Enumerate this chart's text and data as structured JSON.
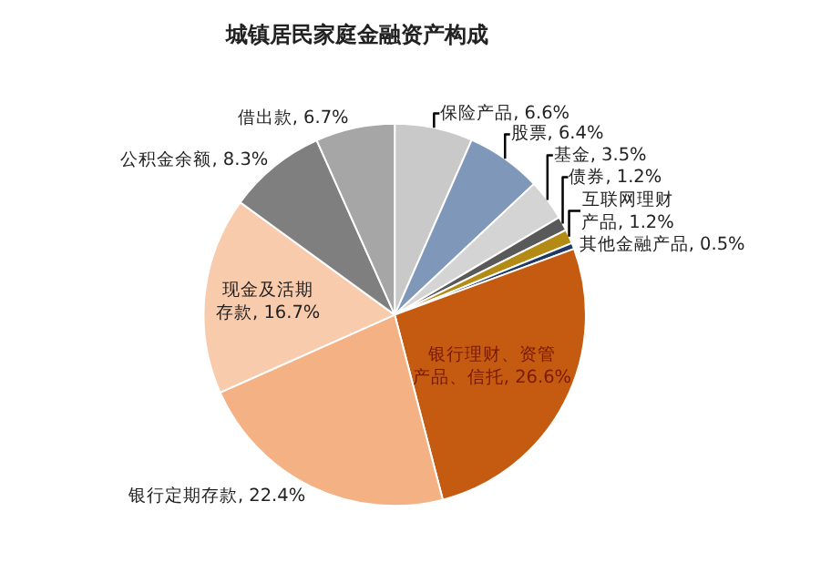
{
  "chart_data": {
    "type": "pie",
    "title": "城镇居民家庭金融资产构成",
    "categories": [
      "保险产品",
      "股票",
      "基金",
      "债券",
      "互联网理财产品",
      "其他金融产品",
      "银行理财、资管产品、信托",
      "银行定期存款",
      "现金及活期存款",
      "公积金余额",
      "借出款"
    ],
    "values": [
      6.6,
      6.4,
      3.5,
      1.2,
      1.2,
      0.5,
      26.6,
      22.4,
      16.7,
      8.3,
      6.7
    ],
    "value_labels": [
      "6.6%",
      "6.4%",
      "3.5%",
      "1.2%",
      "1.2%",
      "0.5%",
      "26.6%",
      "22.4%",
      "16.7%",
      "8.3%",
      "6.7%"
    ],
    "colors": [
      "#c9c9c9",
      "#7f97b8",
      "#d4d4d4",
      "#595959",
      "#b38b14",
      "#1f3864",
      "#c55a11",
      "#f4b183",
      "#f8cbad",
      "#7f7f7f",
      "#a6a6a6"
    ],
    "legend": false
  }
}
